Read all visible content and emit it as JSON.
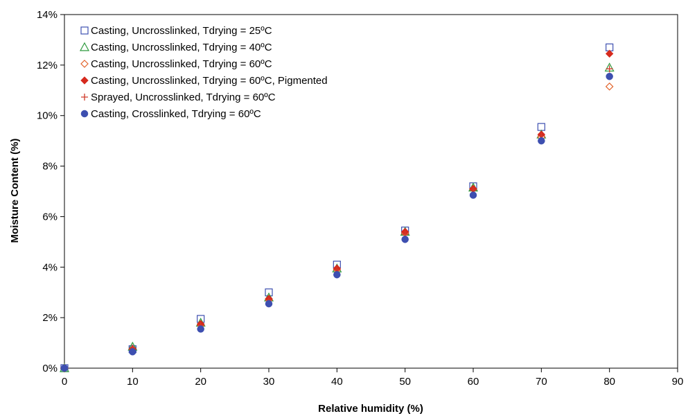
{
  "chart_data": {
    "type": "scatter",
    "title": "",
    "xlabel": "Relative humidity (%)",
    "ylabel": "Moisture Content (%)",
    "xlim": [
      0,
      90
    ],
    "ylim": [
      0,
      14
    ],
    "xticks": [
      0,
      10,
      20,
      30,
      40,
      50,
      60,
      70,
      80,
      90
    ],
    "yticks": [
      0,
      2,
      4,
      6,
      8,
      10,
      12,
      14
    ],
    "xtick_labels": [
      "0",
      "10",
      "20",
      "30",
      "40",
      "50",
      "60",
      "70",
      "80",
      "90"
    ],
    "ytick_labels": [
      "0%",
      "2%",
      "4%",
      "6%",
      "8%",
      "10%",
      "12%",
      "14%"
    ],
    "grid": false,
    "legend_position": "top-left",
    "x": [
      0,
      10,
      20,
      30,
      40,
      50,
      60,
      70,
      80
    ],
    "series": [
      {
        "name": "Casting, Uncrosslinked, Tdrying = 25ºC",
        "marker": "square-open",
        "color": "#3d4fb0",
        "values": [
          0,
          0.75,
          1.95,
          3.0,
          4.1,
          5.45,
          7.2,
          9.55,
          12.7
        ]
      },
      {
        "name": "Casting, Uncrosslinked, Tdrying = 40ºC",
        "marker": "triangle-open",
        "color": "#2e9a3e",
        "values": [
          0,
          0.85,
          1.8,
          2.8,
          3.95,
          5.4,
          7.15,
          9.25,
          11.9
        ]
      },
      {
        "name": "Casting, Uncrosslinked, Tdrying = 60ºC",
        "marker": "diamond-open",
        "color": "#e2632a",
        "values": [
          0,
          0.75,
          1.7,
          2.7,
          3.9,
          5.35,
          7.1,
          9.15,
          11.15
        ]
      },
      {
        "name": "Casting, Uncrosslinked, Tdrying = 60ºC, Pigmented",
        "marker": "diamond-filled",
        "color": "#d62a1e",
        "values": [
          0,
          0.75,
          1.75,
          2.75,
          3.95,
          5.4,
          7.1,
          9.25,
          12.45
        ]
      },
      {
        "name": "Sprayed, Uncrosslinked, Tdrying = 60ºC",
        "marker": "plus",
        "color": "#d03a2a",
        "values": [
          0,
          0.8,
          1.7,
          2.7,
          3.9,
          5.3,
          7.05,
          9.2,
          11.85
        ]
      },
      {
        "name": "Casting, Crosslinked, Tdrying = 60ºC",
        "marker": "circle-filled",
        "color": "#3d4fb0",
        "values": [
          0,
          0.65,
          1.55,
          2.55,
          3.7,
          5.1,
          6.85,
          9.0,
          11.55
        ]
      }
    ]
  }
}
